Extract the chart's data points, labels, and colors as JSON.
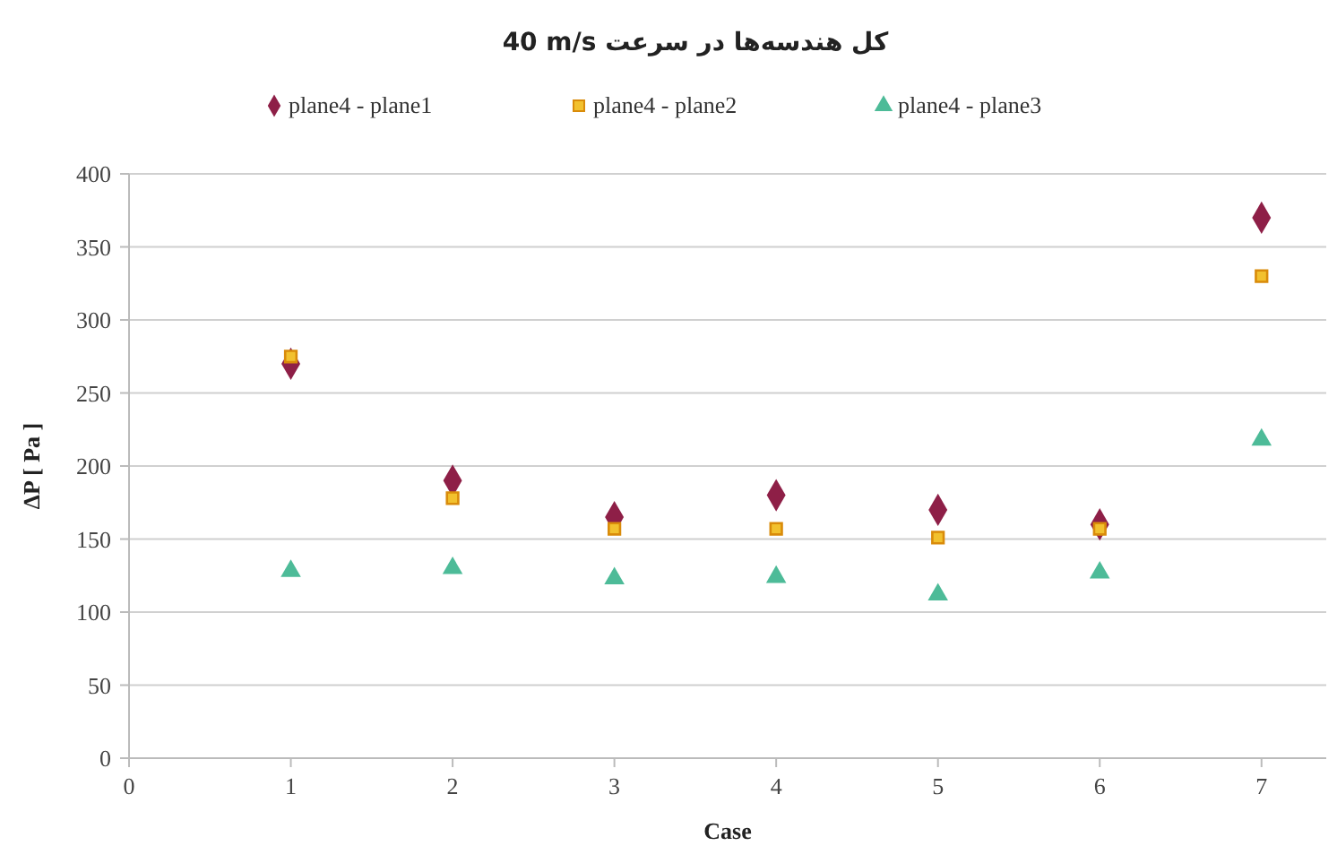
{
  "chart_data": {
    "type": "scatter",
    "title": "کل هندسه‌ها در سرعت 40 m/s",
    "xlabel": "Case",
    "ylabel": "ΔP [ Pa ]",
    "x": [
      1,
      2,
      3,
      4,
      5,
      6,
      7
    ],
    "series": [
      {
        "name": "plane4 - plane1",
        "color": "#8e1f47",
        "marker": "diamond",
        "values": [
          270,
          190,
          165,
          180,
          170,
          160,
          370
        ]
      },
      {
        "name": "plane4 - plane2",
        "color": "#f2c12e",
        "marker": "square",
        "values": [
          275,
          178,
          157,
          157,
          151,
          157,
          330
        ]
      },
      {
        "name": "plane4 - plane3",
        "color": "#4dbb98",
        "marker": "triangle",
        "values": [
          128,
          130,
          123,
          124,
          112,
          127,
          218
        ]
      }
    ],
    "xlim": [
      0,
      7.4
    ],
    "xticks": [
      0,
      1,
      2,
      3,
      4,
      5,
      6,
      7
    ],
    "ylim": [
      0,
      400
    ],
    "yticks": [
      0,
      50,
      100,
      150,
      200,
      250,
      300,
      350,
      400
    ],
    "grid": "y",
    "legend": "top"
  }
}
